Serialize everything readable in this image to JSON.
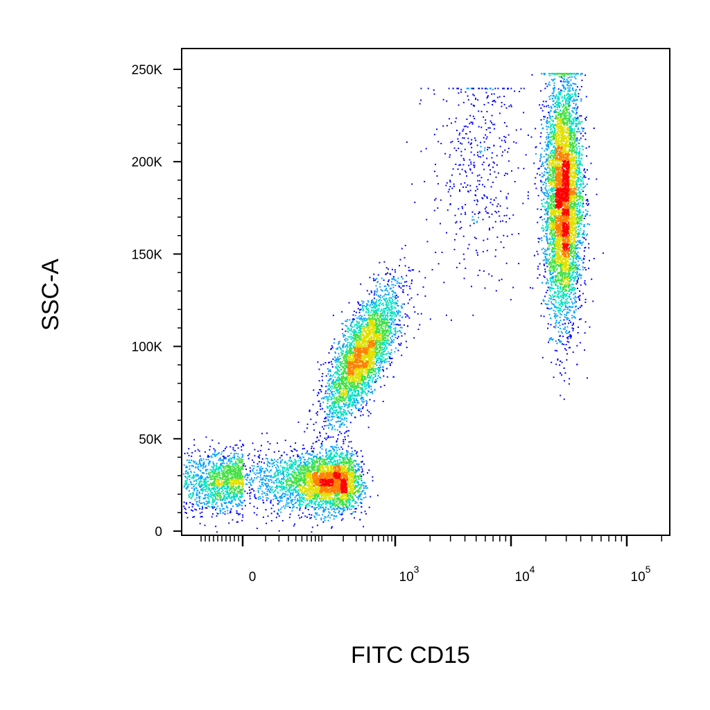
{
  "chart_data": {
    "type": "scatter",
    "style": "density-pseudocolor",
    "xlabel": "FITC  CD15",
    "ylabel": "SSC-A",
    "x_scale": "biexponential",
    "y_scale": "linear",
    "x_range": [
      -100,
      200000
    ],
    "y_range": [
      0,
      260000
    ],
    "grid": false,
    "y_ticks": [
      {
        "value": 0,
        "label": "0"
      },
      {
        "value": 50000,
        "label": "50K"
      },
      {
        "value": 100000,
        "label": "100K"
      },
      {
        "value": 150000,
        "label": "150K"
      },
      {
        "value": 200000,
        "label": "200K"
      },
      {
        "value": 250000,
        "label": "250K"
      }
    ],
    "x_ticks": [
      {
        "value": 0,
        "base": "0",
        "exp": ""
      },
      {
        "value": 1000,
        "base": "10",
        "exp": "3"
      },
      {
        "value": 10000,
        "base": "10",
        "exp": "4"
      },
      {
        "value": 100000,
        "base": "10",
        "exp": "5"
      }
    ],
    "colormap": [
      "#0000ff",
      "#00a0ff",
      "#00e0c0",
      "#40e040",
      "#e0e000",
      "#ff8000",
      "#ff0000"
    ],
    "populations": [
      {
        "x_center": 60,
        "y_center": 27000,
        "x_spread": 120,
        "y_spread": 8000,
        "count": 5000,
        "shape": "ellipse"
      },
      {
        "x_center": 350,
        "y_center": 95000,
        "x_spread": 0.22,
        "y_spread": 15000,
        "count": 3500,
        "shape": "diagonal-band"
      },
      {
        "x_center": 28000,
        "y_center": 180000,
        "x_spread": 0.08,
        "y_spread": 32000,
        "count": 6000,
        "shape": "ellipse"
      },
      {
        "x_center": 5000,
        "y_center": 200000,
        "x_spread": 0.2,
        "y_spread": 30000,
        "count": 450,
        "shape": "sparse"
      }
    ]
  }
}
